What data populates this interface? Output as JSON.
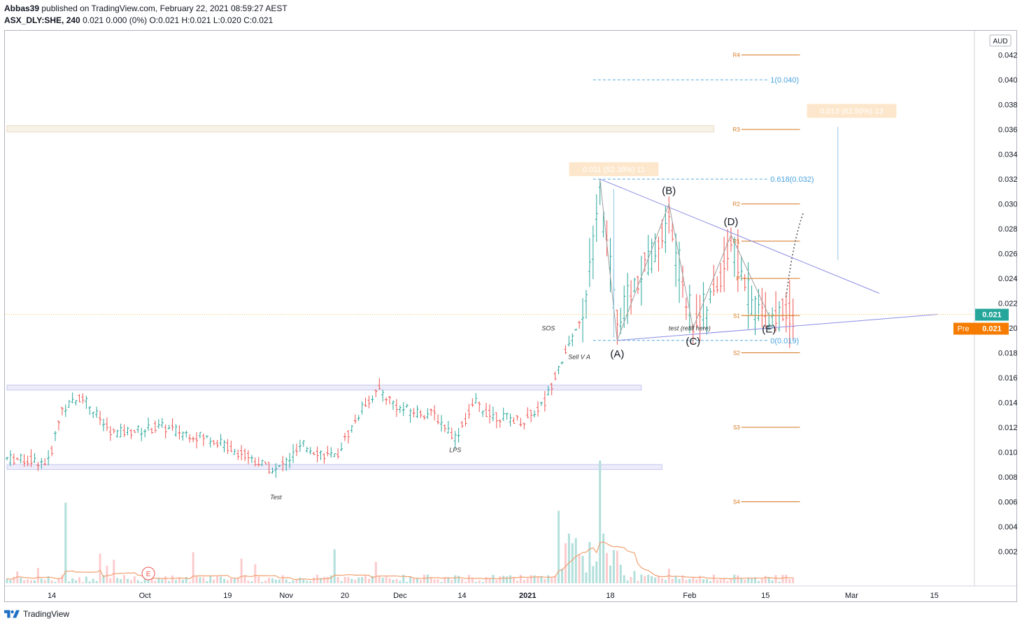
{
  "header": {
    "author": "Abbas39",
    "published_text": "published on TradingView.com, February 22, 2021 08:59:27 AEST",
    "symbol": "ASX_DLY:SHE, 240",
    "quote_line": "0.021 0.000 (0%) O:0.021 H:0.021 L:0.020 C:0.021"
  },
  "footer": {
    "brand": "TradingView"
  },
  "colors": {
    "up": "#26a69a",
    "down": "#ef5350",
    "vol_up": "#b2dfdb",
    "vol_down": "#fccbcd",
    "pivot": "#d4761e",
    "fib": "#2196f3",
    "trend": "#8c8ce6",
    "price_tag": "#26a69a",
    "pre_tag": "#f57c00"
  },
  "chart_data": {
    "type": "candlestick",
    "currency": "AUD",
    "y_ticks": [
      "0.042",
      "0.040",
      "0.038",
      "0.036",
      "0.034",
      "0.032",
      "0.030",
      "0.028",
      "0.026",
      "0.024",
      "0.022",
      "0.020",
      "0.018",
      "0.016",
      "0.014",
      "0.012",
      "0.010",
      "0.008",
      "0.006",
      "0.004",
      "0.002"
    ],
    "ylim": [
      0.0,
      0.0435
    ],
    "x_ticks": [
      {
        "label": "14",
        "i": 13
      },
      {
        "label": "Oct",
        "i": 40
      },
      {
        "label": "19",
        "i": 64
      },
      {
        "label": "Nov",
        "i": 81
      },
      {
        "label": "20",
        "i": 98
      },
      {
        "label": "Dec",
        "i": 114
      },
      {
        "label": "14",
        "i": 132
      },
      {
        "label": "2021",
        "i": 151
      },
      {
        "label": "18",
        "i": 175
      },
      {
        "label": "Feb",
        "i": 198
      },
      {
        "label": "15",
        "i": 220
      },
      {
        "label": "Mar",
        "i": 245
      },
      {
        "label": "15",
        "i": 269
      }
    ],
    "x_count": 280,
    "last_price": "0.021",
    "pre_label": "Pre",
    "pre_price": "0.021",
    "pivots": [
      {
        "label": "R4",
        "value": 0.042
      },
      {
        "label": "R3",
        "value": 0.036
      },
      {
        "label": "R2",
        "value": 0.03
      },
      {
        "label": "R1",
        "value": 0.027
      },
      {
        "label": "P",
        "value": 0.024
      },
      {
        "label": "S1",
        "value": 0.021
      },
      {
        "label": "S2",
        "value": 0.018
      },
      {
        "label": "S3",
        "value": 0.012
      },
      {
        "label": "S4",
        "value": 0.006
      }
    ],
    "pivot_i_start": 213,
    "pivot_i_end": 230,
    "fib_levels": [
      {
        "label": "1(0.040)",
        "value": 0.04
      },
      {
        "label": "0.618(0.032)",
        "value": 0.032
      },
      {
        "label": "0(0.019)",
        "value": 0.019
      }
    ],
    "fib_i_start": 170,
    "fib_i_end": 221,
    "wave_points": [
      {
        "label": "(A)",
        "i": 177,
        "v": 0.019
      },
      {
        "label": "(B)",
        "i": 192,
        "v": 0.03
      },
      {
        "label": "(C)",
        "i": 199,
        "v": 0.02
      },
      {
        "label": "(D)",
        "i": 210,
        "v": 0.0275
      },
      {
        "label": "(E)",
        "i": 221,
        "v": 0.021
      }
    ],
    "wave_start": {
      "i": 172,
      "v": 0.032
    },
    "annotations": [
      {
        "text": "SOS",
        "i": 157,
        "v": 0.0198
      },
      {
        "text": "Sell V A",
        "i": 166,
        "v": 0.0175
      },
      {
        "text": "LPS",
        "i": 130,
        "v": 0.01
      },
      {
        "text": "Test",
        "i": 78,
        "v": 0.0062
      },
      {
        "text": "test (refill here)",
        "i": 198,
        "v": 0.0198
      }
    ],
    "measure_labels": [
      {
        "text": "0.011 (52.38%) 11",
        "i": 176,
        "v": 0.0328
      },
      {
        "text": "0.013 (62.50%) 13",
        "i": 245,
        "v": 0.0375
      }
    ],
    "trendlines": [
      {
        "i1": 172,
        "v1": 0.032,
        "i2": 253,
        "v2": 0.0228
      },
      {
        "i1": 177,
        "v1": 0.019,
        "i2": 270,
        "v2": 0.0211
      }
    ],
    "zones": [
      {
        "i1": 0,
        "i2": 205,
        "v1": 0.0363,
        "v2": 0.0358,
        "color": "#e8dcc0"
      },
      {
        "i1": 0,
        "i2": 184,
        "v1": 0.0154,
        "v2": 0.015,
        "color": "#c8c8f0"
      },
      {
        "i1": 0,
        "i2": 190,
        "v1": 0.009,
        "v2": 0.0086,
        "color": "#c8c8f0"
      }
    ],
    "events": [
      {
        "label": "E",
        "i": 41
      }
    ]
  }
}
